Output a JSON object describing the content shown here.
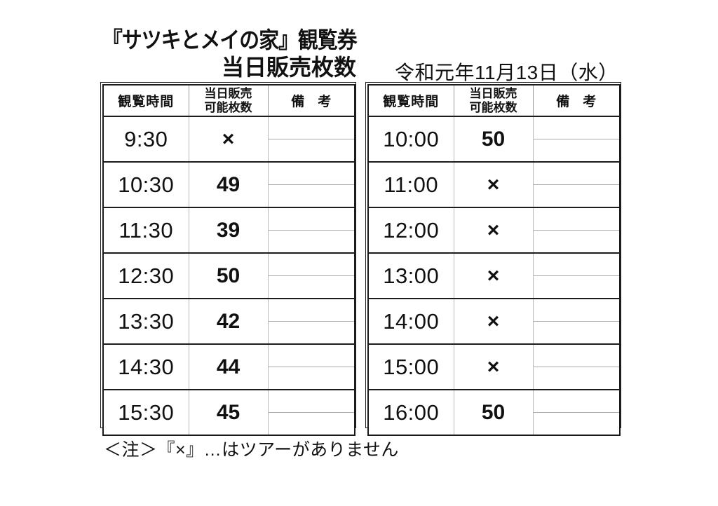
{
  "header": {
    "title_line1": "『サツキとメイの家』観覧券",
    "title_line2": "当日販売枚数",
    "date": "令和元年11月13日（水）"
  },
  "table_headers": {
    "time": "観覧時間",
    "count_line1": "当日販売",
    "count_line2": "可能枚数",
    "remark": "備　考"
  },
  "left_table": {
    "rows": [
      {
        "time": "9:30",
        "count": "×",
        "remark": ""
      },
      {
        "time": "10:30",
        "count": "49",
        "remark": ""
      },
      {
        "time": "11:30",
        "count": "39",
        "remark": ""
      },
      {
        "time": "12:30",
        "count": "50",
        "remark": ""
      },
      {
        "time": "13:30",
        "count": "42",
        "remark": ""
      },
      {
        "time": "14:30",
        "count": "44",
        "remark": ""
      },
      {
        "time": "15:30",
        "count": "45",
        "remark": ""
      }
    ]
  },
  "right_table": {
    "rows": [
      {
        "time": "10:00",
        "count": "50",
        "remark": ""
      },
      {
        "time": "11:00",
        "count": "×",
        "remark": ""
      },
      {
        "time": "12:00",
        "count": "×",
        "remark": ""
      },
      {
        "time": "13:00",
        "count": "×",
        "remark": ""
      },
      {
        "time": "14:00",
        "count": "×",
        "remark": ""
      },
      {
        "time": "15:00",
        "count": "×",
        "remark": ""
      },
      {
        "time": "16:00",
        "count": "50",
        "remark": ""
      }
    ]
  },
  "footer": {
    "note": "＜注＞『×』…はツアーがありません"
  },
  "colors": {
    "line_black": "#1c1c1c",
    "line_gray": "#ababab",
    "text": "#111111",
    "background": "#ffffff"
  }
}
